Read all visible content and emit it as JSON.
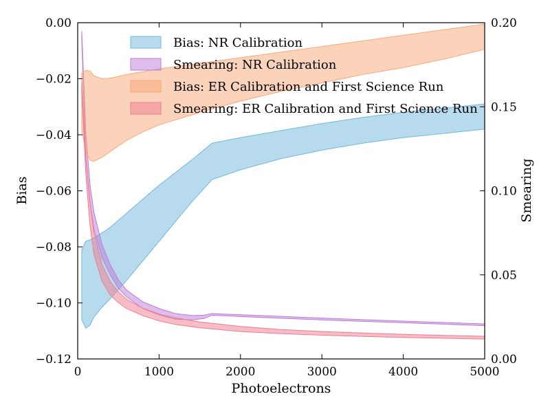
{
  "chart_data": {
    "type": "area",
    "title": "",
    "xlabel": "Photoelectrons",
    "ylabel_left": "Bias",
    "ylabel_right": "Smearing",
    "xlim": [
      0,
      5000
    ],
    "ylim_left": [
      -0.12,
      0.0
    ],
    "ylim_right": [
      0.0,
      0.2
    ],
    "x_ticks": [
      0,
      1000,
      2000,
      3000,
      4000,
      5000
    ],
    "x_tick_labels": [
      "0",
      "1000",
      "2000",
      "3000",
      "4000",
      "5000"
    ],
    "y_left_ticks": [
      0.0,
      -0.02,
      -0.04,
      -0.06,
      -0.08,
      -0.1,
      -0.12
    ],
    "y_left_tick_labels": [
      "0.00",
      "−0.02",
      "−0.04",
      "−0.06",
      "−0.08",
      "−0.10",
      "−0.12"
    ],
    "y_right_ticks": [
      0.2,
      0.15,
      0.1,
      0.05,
      0.0
    ],
    "y_right_tick_labels": [
      "0.20",
      "0.15",
      "0.10",
      "0.05",
      "0.00"
    ],
    "grid": false,
    "legend_position": "top-right",
    "series": [
      {
        "name": "Bias: NR Calibration",
        "axis": "left",
        "color": "#6fb8dc",
        "x": [
          50,
          100,
          150,
          200,
          300,
          400,
          600,
          800,
          1000,
          1200,
          1400,
          1650,
          2000,
          2500,
          3000,
          3500,
          4000,
          4500,
          5000
        ],
        "lower": [
          -0.106,
          -0.109,
          -0.108,
          -0.105,
          -0.1015,
          -0.0985,
          -0.092,
          -0.085,
          -0.078,
          -0.071,
          -0.064,
          -0.056,
          -0.0525,
          -0.0485,
          -0.0455,
          -0.043,
          -0.041,
          -0.0395,
          -0.038
        ],
        "upper": [
          -0.081,
          -0.078,
          -0.0775,
          -0.0768,
          -0.075,
          -0.073,
          -0.068,
          -0.063,
          -0.058,
          -0.0535,
          -0.049,
          -0.043,
          -0.041,
          -0.0385,
          -0.036,
          -0.0338,
          -0.032,
          -0.0305,
          -0.029
        ]
      },
      {
        "name": "Smearing: NR Calibration",
        "axis": "right",
        "color": "#bc7cd8",
        "x": [
          50,
          100,
          150,
          200,
          300,
          400,
          500,
          600,
          800,
          1000,
          1200,
          1400,
          1550,
          1650,
          2000,
          3000,
          4000,
          5000
        ],
        "lower": [
          0.19,
          0.12,
          0.093,
          0.077,
          0.06,
          0.05,
          0.042,
          0.037,
          0.03,
          0.0262,
          0.0237,
          0.0232,
          0.024,
          0.026,
          0.0252,
          0.0232,
          0.0215,
          0.0198
        ],
        "upper": [
          0.195,
          0.135,
          0.104,
          0.087,
          0.068,
          0.056,
          0.047,
          0.041,
          0.034,
          0.03,
          0.027,
          0.0258,
          0.026,
          0.027,
          0.0263,
          0.0243,
          0.0225,
          0.0208
        ]
      },
      {
        "name": "Bias: ER Calibration and First Science Run",
        "axis": "left",
        "color": "#f8a878",
        "x": [
          50,
          100,
          150,
          200,
          300,
          400,
          600,
          800,
          1000,
          1500,
          2000,
          2500,
          3000,
          3500,
          4000,
          4500,
          5000
        ],
        "lower": [
          -0.038,
          -0.046,
          -0.049,
          -0.0495,
          -0.048,
          -0.046,
          -0.042,
          -0.039,
          -0.0365,
          -0.032,
          -0.028,
          -0.0245,
          -0.0215,
          -0.0185,
          -0.016,
          -0.013,
          -0.0095
        ],
        "upper": [
          -0.018,
          -0.017,
          -0.0172,
          -0.019,
          -0.02,
          -0.0198,
          -0.0185,
          -0.0175,
          -0.0165,
          -0.0145,
          -0.0125,
          -0.0105,
          -0.0085,
          -0.0065,
          -0.0045,
          -0.0025,
          -0.0005
        ]
      },
      {
        "name": "Smearing: ER Calibration and First Science Run",
        "axis": "right",
        "color": "#f07c8e",
        "x": [
          50,
          100,
          150,
          200,
          300,
          400,
          500,
          600,
          800,
          1000,
          1200,
          1500,
          2000,
          2500,
          3000,
          3500,
          4000,
          4500,
          5000
        ],
        "lower": [
          0.16,
          0.11,
          0.08,
          0.062,
          0.046,
          0.038,
          0.0335,
          0.03,
          0.0257,
          0.0226,
          0.0205,
          0.0185,
          0.0163,
          0.015,
          0.0141,
          0.0134,
          0.0128,
          0.0123,
          0.0118
        ],
        "upper": [
          0.165,
          0.12,
          0.093,
          0.075,
          0.056,
          0.046,
          0.04,
          0.0355,
          0.0302,
          0.0267,
          0.0244,
          0.022,
          0.0193,
          0.0175,
          0.0163,
          0.0154,
          0.0146,
          0.014,
          0.0135
        ]
      }
    ]
  }
}
